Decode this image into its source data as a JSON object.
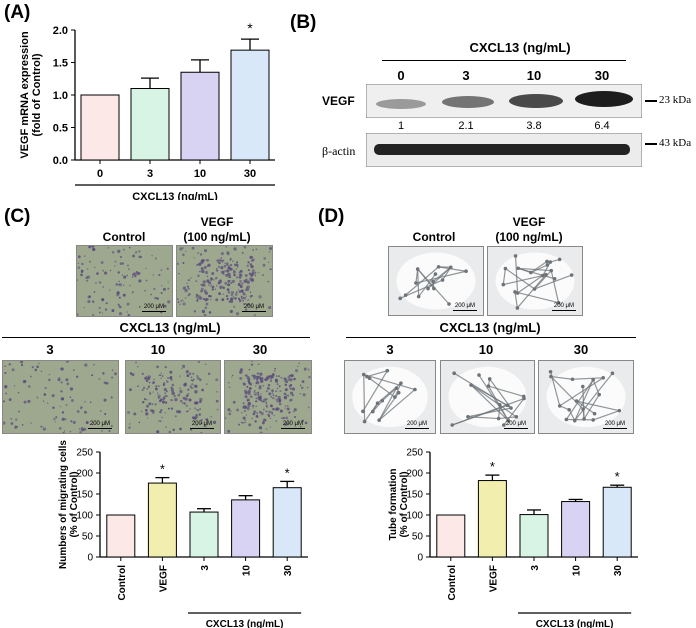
{
  "panels": {
    "A": "(A)",
    "B": "(B)",
    "C": "(C)",
    "D": "(D)"
  },
  "colors": {
    "control": "#fde8e8",
    "vegf": "#f1eeae",
    "c3": "#d8f4e4",
    "c10": "#d9d3f3",
    "c30": "#d9e8f8",
    "migration_bg": "#9ea88e",
    "migration_dots": "#5a4c7c",
    "tube_bg": "#e9ebec",
    "tube_net": "#6d7378"
  },
  "chart_data": [
    {
      "id": "A",
      "type": "bar",
      "categories": [
        "0",
        "3",
        "10",
        "30"
      ],
      "values": [
        1.0,
        1.1,
        1.35,
        1.69
      ],
      "errors": [
        0,
        0.16,
        0.19,
        0.17
      ],
      "significant": [
        false,
        false,
        false,
        true
      ],
      "ylabel": "VEGF mRNA expression (fold of Control)",
      "xlabel": "CXCL13 (ng/mL)",
      "ylim": [
        0,
        2.0
      ],
      "yticks": [
        "0.0",
        "0.5",
        "1.0",
        "1.5",
        "2.0"
      ],
      "grid": false
    },
    {
      "id": "C",
      "type": "bar",
      "categories": [
        "Control",
        "VEGF",
        "3",
        "10",
        "30"
      ],
      "values": [
        100,
        176,
        107,
        136,
        165
      ],
      "errors": [
        0,
        13,
        8,
        10,
        15
      ],
      "significant": [
        false,
        true,
        false,
        false,
        true
      ],
      "ylabel": "Numbers of migrating cells (% of Control)",
      "xlabel": "CXCL13 (ng/mL)",
      "ylim": [
        0,
        250
      ],
      "yticks": [
        "0",
        "50",
        "100",
        "150",
        "200",
        "250"
      ],
      "grid": false
    },
    {
      "id": "D",
      "type": "bar",
      "categories": [
        "Control",
        "VEGF",
        "3",
        "10",
        "30"
      ],
      "values": [
        100,
        182,
        101,
        132,
        166
      ],
      "errors": [
        0,
        13,
        11,
        5,
        5
      ],
      "significant": [
        false,
        true,
        false,
        false,
        true
      ],
      "ylabel": "Tube formation (% of Control)",
      "xlabel": "CXCL13 (ng/mL)",
      "ylim": [
        0,
        250
      ],
      "yticks": [
        "0",
        "50",
        "100",
        "150",
        "200",
        "250"
      ],
      "grid": false
    }
  ],
  "panel_b": {
    "header": "CXCL13 (ng/mL)",
    "lanes": [
      "0",
      "3",
      "10",
      "30"
    ],
    "row1_label": "VEGF",
    "row1_size": "23 kDa",
    "row1_quant": [
      "1",
      "2.1",
      "3.8",
      "6.4"
    ],
    "row1_intensity": [
      0.45,
      0.6,
      0.78,
      0.95
    ],
    "row2_label": "β-actin",
    "row2_size": "43 kDa"
  },
  "panel_c": {
    "top_labels": [
      "Control",
      "VEGF",
      "(100 ng/mL)"
    ],
    "group_header": "CXCL13 (ng/mL)",
    "dose_labels": [
      "3",
      "10",
      "30"
    ],
    "scale": "200 μM"
  },
  "panel_d": {
    "top_labels": [
      "Control",
      "VEGF",
      "(100 ng/mL)"
    ],
    "group_header": "CXCL13 (ng/mL)",
    "dose_labels": [
      "3",
      "10",
      "30"
    ],
    "scale": "200 μM"
  }
}
